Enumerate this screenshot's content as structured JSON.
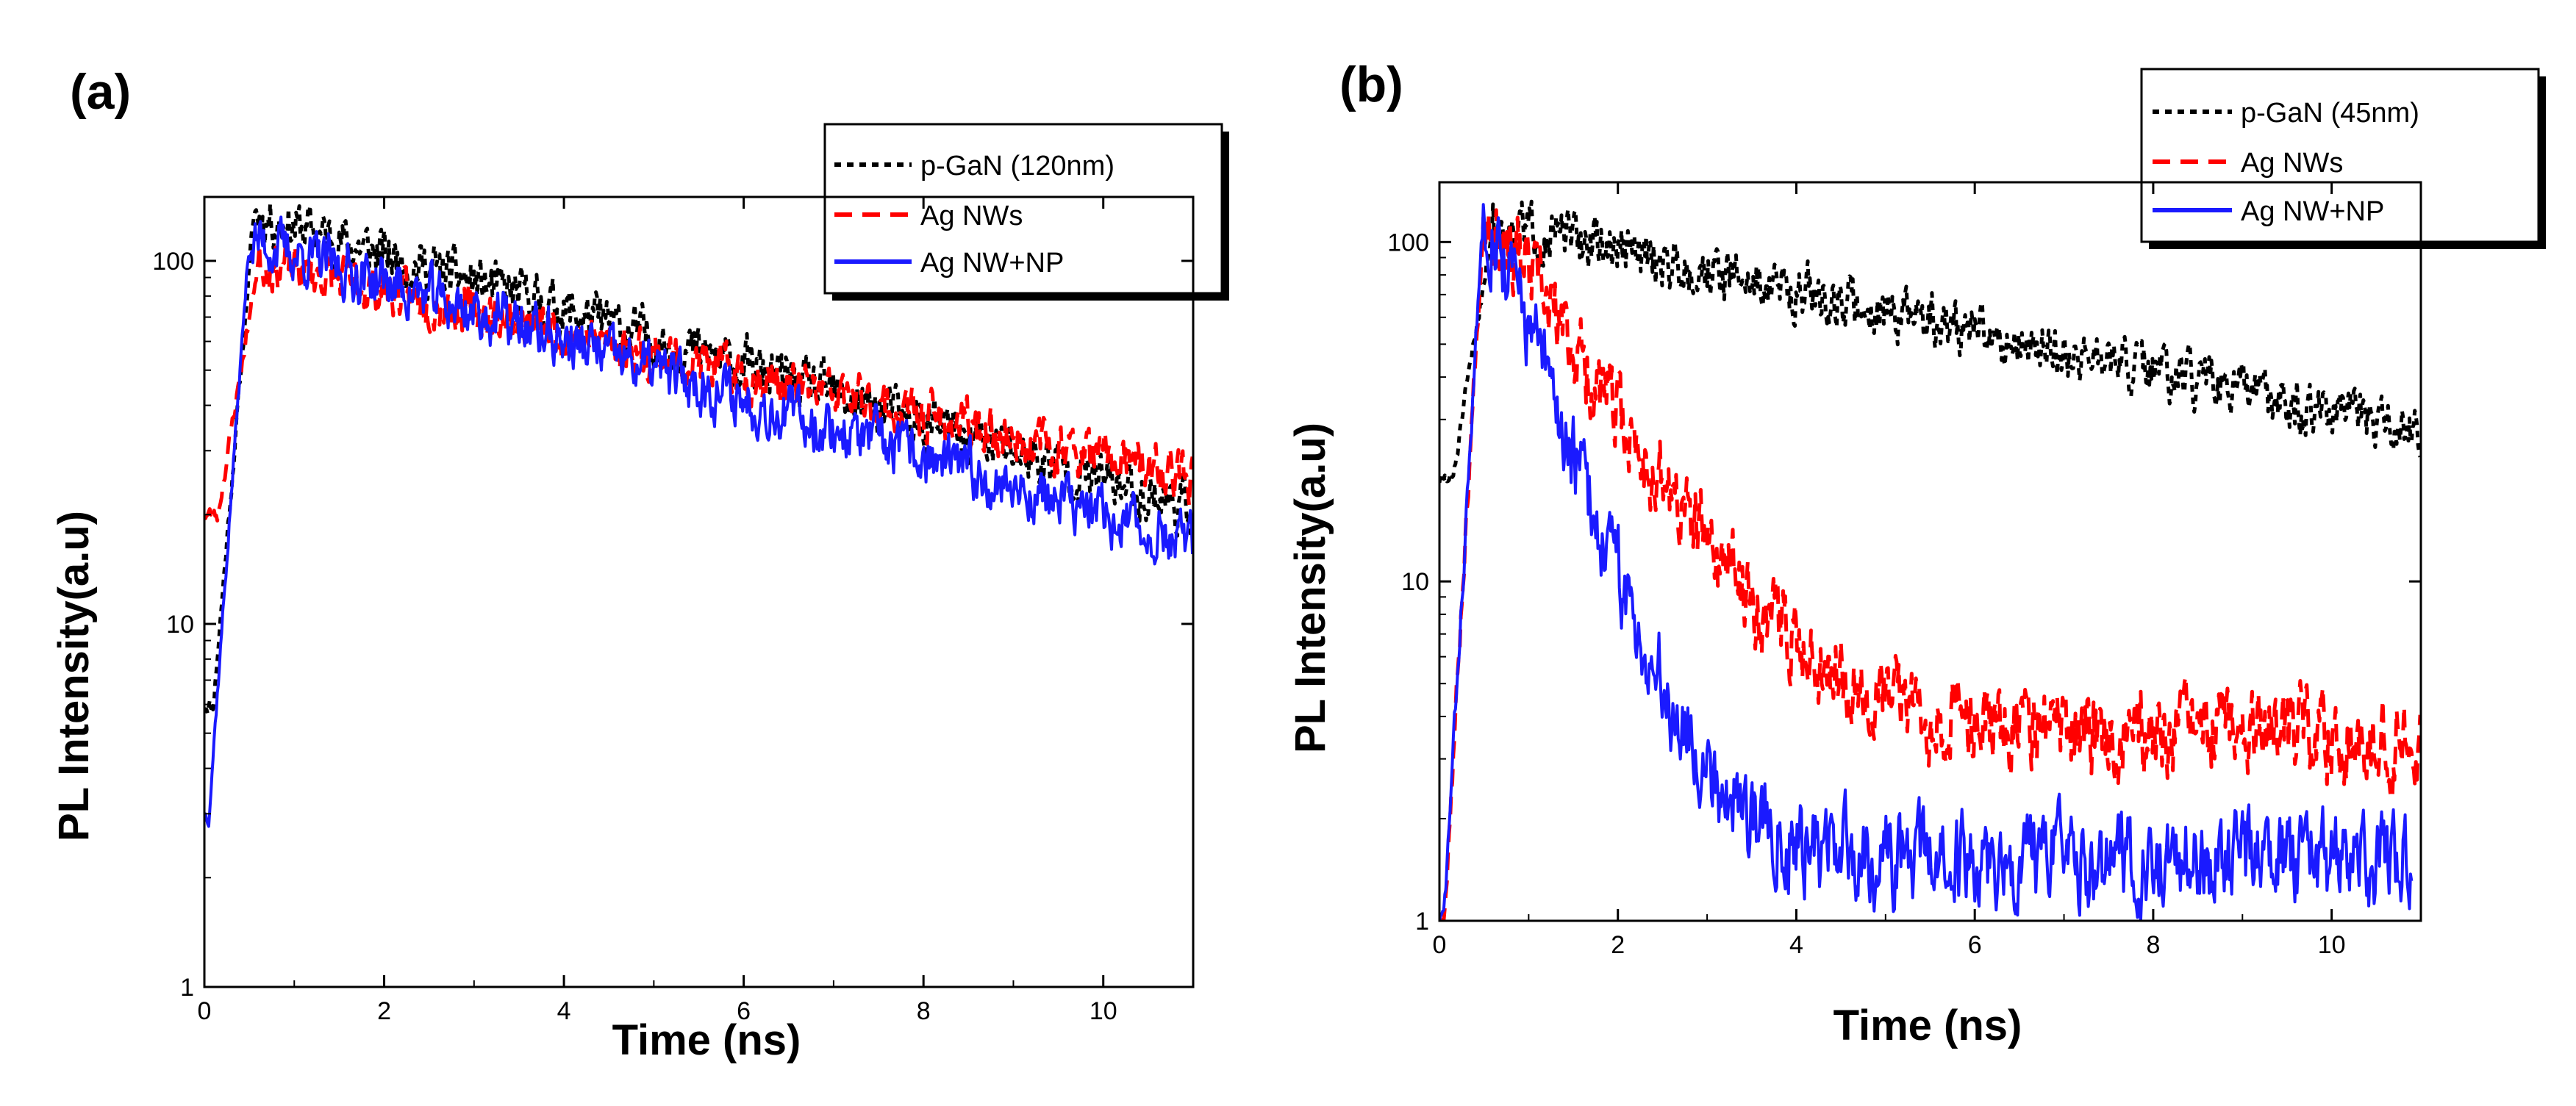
{
  "chart_data": [
    {
      "type": "line",
      "panel_label": "(a)",
      "xlabel": "Time (ns)",
      "ylabel": "PL Intensity(a.u)",
      "xlim": [
        0,
        11
      ],
      "ylim": [
        1,
        150
      ],
      "yscale": "log",
      "x_ticks": [
        0,
        2,
        4,
        6,
        8,
        10
      ],
      "x_tick_labels": [
        "0",
        "2",
        "4",
        "6",
        "8",
        "10"
      ],
      "y_ticks": [
        1,
        10,
        100
      ],
      "y_tick_labels": [
        "1",
        "10",
        "100"
      ],
      "legend_position": "top-right",
      "series": [
        {
          "name": "p-GaN (120nm)",
          "color": "#000000",
          "style": "dotted",
          "rise_from": 6,
          "peak_time": 0.55,
          "peak": 135,
          "tau": 5.6,
          "noise": 0.13,
          "floor": 0,
          "seed": 11,
          "t_end": 11
        },
        {
          "name": "Ag NWs",
          "color": "#ff0000",
          "style": "dashed",
          "rise_from": 20,
          "peak_time": 0.6,
          "peak": 100,
          "tau": 7.5,
          "noise": 0.12,
          "floor": 0,
          "seed": 23,
          "t_end": 11
        },
        {
          "name": "Ag NW+NP",
          "color": "#1a1aff",
          "style": "solid",
          "rise_from": 3,
          "peak_time": 0.5,
          "peak": 115,
          "tau": 5.4,
          "noise": 0.14,
          "floor": 0,
          "seed": 37,
          "t_end": 11
        }
      ]
    },
    {
      "type": "line",
      "panel_label": "(b)",
      "xlabel": "Time (ns)",
      "ylabel": "PL Intensity(a.u)",
      "xlim": [
        0,
        11
      ],
      "ylim": [
        1,
        150
      ],
      "yscale": "log",
      "x_ticks": [
        0,
        2,
        4,
        6,
        8,
        10
      ],
      "x_tick_labels": [
        "0",
        "2",
        "4",
        "6",
        "8",
        "10"
      ],
      "y_ticks": [
        1,
        10,
        100
      ],
      "y_tick_labels": [
        "1",
        "10",
        "100"
      ],
      "legend_position": "top-right",
      "series": [
        {
          "name": "p-GaN (45nm)",
          "color": "#000000",
          "style": "dotted",
          "rise_from": 20,
          "peak_time": 0.6,
          "peak": 115,
          "tau": 7.2,
          "noise": 0.14,
          "floor": 0,
          "seed": 51,
          "t_end": 11
        },
        {
          "name": "Ag NWs",
          "color": "#ff0000",
          "style": "dashed",
          "rise_from": 1,
          "peak_time": 0.5,
          "peak": 130,
          "tau": 0.95,
          "noise": 0.22,
          "floor": 3.5,
          "seed": 67,
          "t_end": 11
        },
        {
          "name": "Ag NW+NP",
          "color": "#1a1aff",
          "style": "solid",
          "rise_from": 1,
          "peak_time": 0.5,
          "peak": 135,
          "tau": 0.55,
          "noise": 0.25,
          "floor": 1.5,
          "seed": 83,
          "t_end": 10.9
        }
      ]
    }
  ]
}
